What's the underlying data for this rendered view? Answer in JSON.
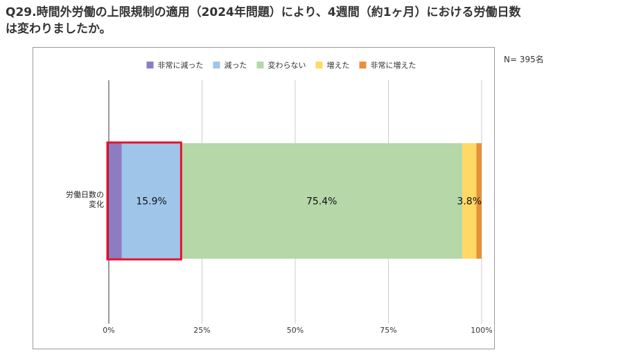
{
  "header": {
    "title_line1": "Q29.時間外労働の上限規制の適用（2024年問題）により、4週間（約1ヶ月）における労働日数",
    "title_line2": "は変わりましたか。",
    "n_label": "N= 395名"
  },
  "chart_data": {
    "type": "bar",
    "orientation": "horizontal",
    "stacked": true,
    "percent": true,
    "categories": [
      "労働日数の変化"
    ],
    "category_label_lines": [
      "労働日数の",
      "変化"
    ],
    "series": [
      {
        "name": "非常に減った",
        "values": [
          3.5
        ],
        "color": "#8e7cc3",
        "label": ""
      },
      {
        "name": "減った",
        "values": [
          15.9
        ],
        "color": "#9fc5e8",
        "label": "15.9%"
      },
      {
        "name": "変わらない",
        "values": [
          75.4
        ],
        "color": "#b6d7a8",
        "label": "75.4%"
      },
      {
        "name": "増えた",
        "values": [
          3.8
        ],
        "color": "#ffd966",
        "label": "3.8%"
      },
      {
        "name": "非常に増えた",
        "values": [
          1.4
        ],
        "color": "#e69138",
        "label": ""
      }
    ],
    "x_ticks": [
      "0%",
      "25%",
      "50%",
      "75%",
      "100%"
    ],
    "xlim": [
      0,
      100
    ],
    "grid": true,
    "legend_position": "top",
    "highlight": {
      "from": 0,
      "to": 19.4,
      "color": "#e8112d"
    }
  }
}
